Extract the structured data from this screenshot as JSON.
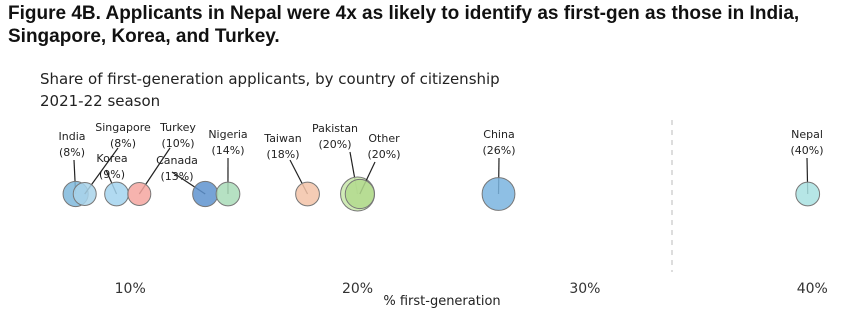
{
  "chart_data": {
    "type": "scatter",
    "title": "Figure 4B. Applicants in Nepal were 4x as likely to identify as first-gen as those in India, Singapore, Korea, and Turkey.",
    "subtitle": [
      "Share of first-generation applicants, by country of citizenship",
      "2021-22 season"
    ],
    "x_label": "% first-generation",
    "categories": [
      "India",
      "Singapore",
      "Korea",
      "Turkey",
      "Canada",
      "Nigeria",
      "Taiwan",
      "Pakistan",
      "Other",
      "China",
      "Nepal"
    ],
    "x": [
      7.6,
      8.0,
      9.4,
      10.4,
      13.3,
      14.3,
      17.8,
      20.0,
      20.1,
      26.2,
      39.8
    ],
    "value_labels": [
      "(8%)",
      "(8%)",
      "(9%)",
      "(10%)",
      "(13%)",
      "(14%)",
      "(18%)",
      "(20%)",
      "(20%)",
      "(26%)",
      "(40%)"
    ],
    "sizes": [
      10,
      7,
      8,
      7,
      10,
      8,
      8,
      28,
      17,
      25,
      8
    ],
    "colors": [
      "#7fb8dc",
      "#a9d3ea",
      "#a3d4ee",
      "#f4a6a0",
      "#5e93cf",
      "#a9dcb8",
      "#f3c3a8",
      "#c8e7a9",
      "#b3db8e",
      "#7ab4df",
      "#a9e2e2"
    ],
    "xlim": [
      7,
      41
    ],
    "xticks": [
      {
        "value": 10,
        "label": "10%"
      },
      {
        "value": 20,
        "label": "20%"
      },
      {
        "value": 30,
        "label": "30%"
      },
      {
        "value": 40,
        "label": "40%"
      }
    ]
  }
}
